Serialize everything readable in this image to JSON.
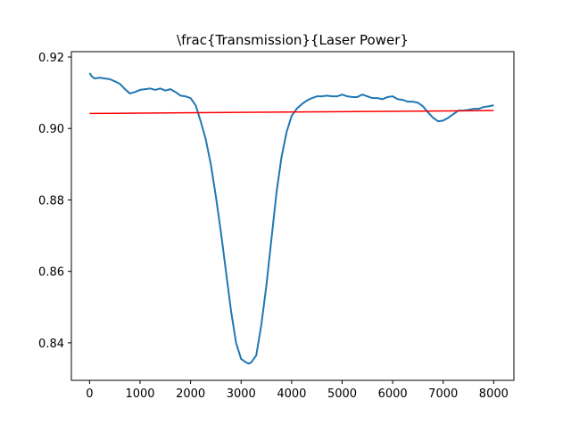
{
  "chart_data": {
    "type": "line",
    "title": "\\frac{Transmission}{Laser Power}",
    "xlabel": "",
    "ylabel": "",
    "xlim": [
      -360,
      8400
    ],
    "ylim": [
      0.8295,
      0.9215
    ],
    "xticks": [
      0,
      1000,
      2000,
      3000,
      4000,
      5000,
      6000,
      7000,
      8000
    ],
    "xtick_labels": [
      "0",
      "1000",
      "2000",
      "3000",
      "4000",
      "5000",
      "6000",
      "7000",
      "8000"
    ],
    "yticks": [
      0.84,
      0.86,
      0.88,
      0.9,
      0.92
    ],
    "ytick_labels": [
      "0.84",
      "0.86",
      "0.88",
      "0.90",
      "0.92"
    ],
    "grid": false,
    "legend": "none",
    "series": [
      {
        "color": "#1f77b4",
        "x": [
          0,
          50,
          100,
          200,
          300,
          400,
          500,
          600,
          700,
          800,
          900,
          1000,
          1100,
          1200,
          1300,
          1400,
          1500,
          1600,
          1700,
          1800,
          1900,
          2000,
          2100,
          2200,
          2300,
          2400,
          2500,
          2600,
          2700,
          2800,
          2900,
          3000,
          3100,
          3150,
          3200,
          3300,
          3400,
          3500,
          3600,
          3700,
          3800,
          3900,
          4000,
          4100,
          4200,
          4300,
          4400,
          4500,
          4600,
          4700,
          4800,
          4900,
          5000,
          5100,
          5200,
          5300,
          5400,
          5500,
          5600,
          5700,
          5800,
          5900,
          6000,
          6100,
          6200,
          6300,
          6400,
          6500,
          6600,
          6700,
          6800,
          6900,
          7000,
          7100,
          7200,
          7300,
          7400,
          7500,
          7600,
          7700,
          7800,
          7900,
          8000
        ],
        "values": [
          0.9155,
          0.9145,
          0.914,
          0.9142,
          0.914,
          0.9138,
          0.9132,
          0.9125,
          0.911,
          0.9098,
          0.9102,
          0.9108,
          0.911,
          0.9112,
          0.9108,
          0.9112,
          0.9106,
          0.911,
          0.9102,
          0.9092,
          0.909,
          0.9085,
          0.9065,
          0.902,
          0.897,
          0.89,
          0.881,
          0.871,
          0.86,
          0.849,
          0.84,
          0.8355,
          0.8345,
          0.8342,
          0.8345,
          0.8365,
          0.845,
          0.856,
          0.869,
          0.882,
          0.892,
          0.899,
          0.9035,
          0.9055,
          0.9068,
          0.9078,
          0.9085,
          0.909,
          0.909,
          0.9092,
          0.909,
          0.909,
          0.9095,
          0.909,
          0.9088,
          0.9088,
          0.9095,
          0.909,
          0.9085,
          0.9085,
          0.9082,
          0.9088,
          0.909,
          0.9082,
          0.908,
          0.9075,
          0.9075,
          0.9072,
          0.9062,
          0.9045,
          0.903,
          0.902,
          0.9022,
          0.903,
          0.904,
          0.905,
          0.905,
          0.9052,
          0.9055,
          0.9055,
          0.906,
          0.9062,
          0.9065
        ]
      },
      {
        "color": "#ff0000",
        "x": [
          0,
          8000
        ],
        "values": [
          0.9042,
          0.905
        ]
      }
    ]
  }
}
